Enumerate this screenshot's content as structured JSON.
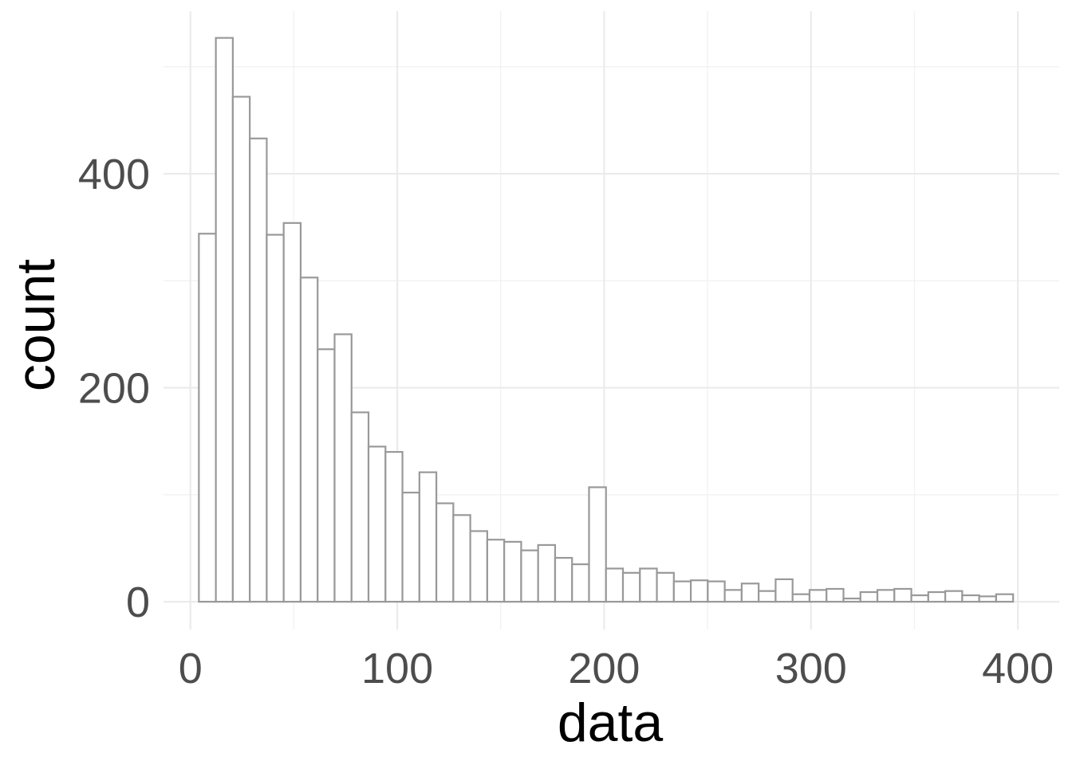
{
  "chart_data": {
    "type": "bar",
    "title": "",
    "xlabel": "data",
    "ylabel": "count",
    "xlim": [
      -13,
      420
    ],
    "ylim": [
      -26,
      552
    ],
    "grid": true,
    "x_ticks": [
      0,
      100,
      200,
      300,
      400
    ],
    "x_tick_labels": [
      "0",
      "100",
      "200",
      "300",
      "400"
    ],
    "y_ticks": [
      0,
      200,
      400
    ],
    "y_tick_labels": [
      "0",
      "200",
      "400"
    ],
    "bins": {
      "first_left_edge": 4.1,
      "width": 8.2,
      "counts": [
        344,
        527,
        472,
        433,
        343,
        354,
        303,
        236,
        250,
        177,
        145,
        140,
        102,
        121,
        92,
        81,
        66,
        58,
        56,
        48,
        53,
        41,
        35,
        107,
        31,
        27,
        31,
        27,
        19,
        20,
        19,
        11,
        17,
        10,
        21,
        7,
        11,
        12,
        3,
        9,
        11,
        12,
        6,
        9,
        10,
        6,
        5,
        7
      ]
    },
    "colors": {
      "bar_fill": "#ffffff",
      "bar_outline": "#999999",
      "grid": "#ebebeb",
      "tick_text": "#4d4d4d",
      "axis_title": "#000000"
    }
  }
}
